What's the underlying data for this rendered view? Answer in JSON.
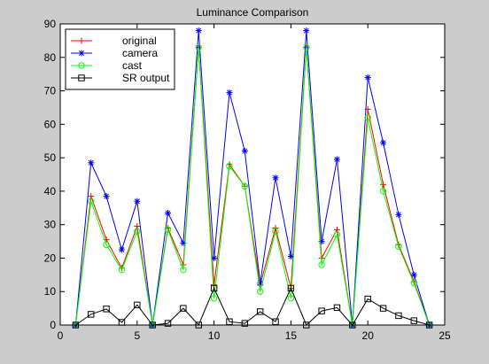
{
  "chart_data": {
    "type": "line",
    "title": "Luminance Comparison",
    "xlabel": "",
    "ylabel": "",
    "xlim": [
      0,
      25
    ],
    "ylim": [
      0,
      90
    ],
    "xticks": [
      0,
      5,
      10,
      15,
      20,
      25
    ],
    "yticks": [
      0,
      10,
      20,
      30,
      40,
      50,
      60,
      70,
      80,
      90
    ],
    "grid": false,
    "legend_position": "top-left",
    "x": [
      1,
      2,
      3,
      4,
      5,
      6,
      7,
      8,
      9,
      10,
      11,
      12,
      13,
      14,
      15,
      16,
      17,
      18,
      19,
      20,
      21,
      22,
      23,
      24
    ],
    "series": [
      {
        "name": "original",
        "color": "#ff0000",
        "marker": "plus",
        "values": [
          0,
          38.5,
          25.5,
          17,
          29.5,
          0,
          29,
          18,
          83,
          12,
          48,
          41.5,
          12,
          29,
          11,
          83,
          20,
          28.5,
          0,
          64.5,
          42,
          24,
          13,
          0
        ]
      },
      {
        "name": "camera",
        "color": "#0000ff",
        "marker": "star",
        "values": [
          0,
          48.5,
          38.5,
          22.5,
          37,
          0,
          33.5,
          24.5,
          88,
          20,
          69.5,
          52,
          12.5,
          44,
          20.5,
          88,
          25,
          49.5,
          0,
          74,
          54.5,
          33,
          15,
          0
        ]
      },
      {
        "name": "cast",
        "color": "#00ff00",
        "marker": "circle",
        "values": [
          0,
          37,
          24,
          16.5,
          28,
          0,
          28.5,
          16.5,
          83,
          8,
          47.5,
          41.5,
          10,
          28,
          8,
          83,
          18,
          27,
          0,
          62,
          40,
          23.5,
          12.5,
          0
        ]
      },
      {
        "name": "SR output",
        "color": "#000000",
        "marker": "square",
        "values": [
          0,
          3.2,
          4.8,
          0.8,
          6,
          0,
          0.5,
          5,
          0,
          11,
          1,
          0.5,
          4,
          1,
          11,
          0,
          4.2,
          5.2,
          0,
          7.8,
          5,
          2.8,
          1.3,
          0
        ]
      }
    ]
  }
}
